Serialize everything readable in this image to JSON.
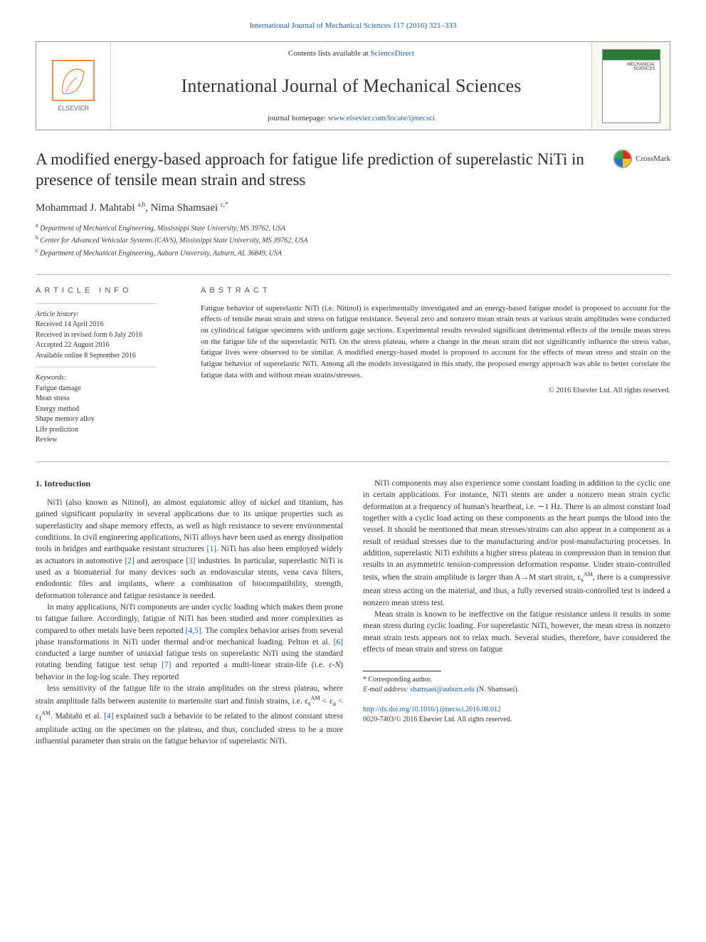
{
  "colors": {
    "link": "#1a5fb4",
    "text": "#333333",
    "rule": "#bbbbbb",
    "elsevier_orange": "#ff6a00",
    "elsevier_text": "#666666",
    "journal_green": "#2a7a3a",
    "crossmark_red": "#d62d20",
    "crossmark_yellow": "#f5c518",
    "crossmark_blue": "#2a6fd6",
    "crossmark_green": "#2aa84a"
  },
  "header": {
    "citation_link": "International Journal of Mechanical Sciences 117 (2016) 321–333",
    "contents_prefix": "Contents lists available at ",
    "contents_link": "ScienceDirect",
    "journal_name": "International Journal of Mechanical Sciences",
    "homepage_prefix": "journal homepage: ",
    "homepage_link": "www.elsevier.com/locate/ijmecsci",
    "publisher_logo_label": "ELSEVIER",
    "crossmark_label": "CrossMark"
  },
  "article": {
    "title": "A modified energy-based approach for fatigue life prediction of superelastic NiTi in presence of tensile mean strain and stress",
    "authors_html": "Mohammad J. Mahtabi <sup>a,b</sup>, Nima Shamsaei <sup>c,*</sup>",
    "affiliations": [
      {
        "sup": "a",
        "text": "Department of Mechanical Engineering, Mississippi State University, MS 39762, USA"
      },
      {
        "sup": "b",
        "text": "Center for Advanced Vehicular Systems (CAVS), Mississippi State University, MS 39762, USA"
      },
      {
        "sup": "c",
        "text": "Department of Mechanical Engineering, Auburn University, Auburn, AL 36849, USA"
      }
    ]
  },
  "info": {
    "heading": "ARTICLE INFO",
    "history_label": "Article history:",
    "history": [
      "Received 14 April 2016",
      "Received in revised form 6 July 2016",
      "Accepted 22 August 2016",
      "Available online 8 September 2016"
    ],
    "keywords_label": "Keywords:",
    "keywords": [
      "Fatigue damage",
      "Mean stress",
      "Energy method",
      "Shape memory alloy",
      "Life prediction",
      "Review"
    ]
  },
  "abstract": {
    "heading": "ABSTRACT",
    "text": "Fatigue behavior of superelastic NiTi (i.e. Nitinol) is experimentally investigated and an energy-based fatigue model is proposed to account for the effects of tensile mean strain and stress on fatigue resistance. Several zero and nonzero mean strain tests at various strain amplitudes were conducted on cylindrical fatigue specimens with uniform gage sections. Experimental results revealed significant detrimental effects of the tensile mean stress on the fatigue life of the superelastic NiTi. On the stress plateau, where a change in the mean strain did not significantly influence the stress value, fatigue lives were observed to be similar. A modified energy-based model is proposed to account for the effects of mean stress and strain on the fatigue behavior of superelastic NiTi. Among all the models investigated in this study, the proposed energy approach was able to better correlate the fatigue data with and without mean strains/stresses.",
    "copyright": "© 2016 Elsevier Ltd. All rights reserved."
  },
  "body": {
    "section_heading": "1. Introduction",
    "paragraphs": [
      "NiTi (also known as Nitinol), an almost equiatomic alloy of nickel and titanium, has gained significant popularity in several applications due to its unique properties such as superelasticity and shape memory effects, as well as high resistance to severe environmental conditions. In civil engineering applications, NiTi alloys have been used as energy dissipation tools in bridges and earthquake resistant structures <a class=\"ref-link\" data-name=\"reference-link\" data-interactable=\"true\">[1]</a>. NiTi has also been employed widely as actuators in automotive <a class=\"ref-link\" data-name=\"reference-link\" data-interactable=\"true\">[2]</a> and aerospace <a class=\"ref-link\" data-name=\"reference-link\" data-interactable=\"true\">[3]</a> industries. In particular, superelastic NiTi is used as a biomaterial for many devices such as endovascular stents, vena cava filters, endodontic files and implants, where a combination of biocompatibility, strength, deformation tolerance and fatigue resistance is needed.",
      "In many applications, NiTi components are under cyclic loading which makes them prone to fatigue failure. Accordingly, fatigue of NiTi has been studied and more complexities as compared to other metals have been reported <a class=\"ref-link\" data-name=\"reference-link\" data-interactable=\"true\">[4,5]</a>. The complex behavior arises from several phase transformations in NiTi under thermal and/or mechanical loading. Pelton et al. <a class=\"ref-link\" data-name=\"reference-link\" data-interactable=\"true\">[6]</a> conducted a large number of uniaxial fatigue tests on superelastic NiTi using the standard rotating bending fatigue test setup <a class=\"ref-link\" data-name=\"reference-link\" data-interactable=\"true\">[7]</a> and reported a multi-linear strain-life (i.e. <i>ε-N</i>) behavior in the log-log scale. They reported",
      "less sensitivity of the fatigue life to the strain amplitudes on the stress plateau, where strain amplitude falls between austenite to martensite start and finish strains, i.e. ε<sub>s</sub><sup>AM</sup> &lt; ε<sub>a</sub> &lt; ε<sub>f</sub><sup>AM</sup>. Mahtabi et al. <a class=\"ref-link\" data-name=\"reference-link\" data-interactable=\"true\">[4]</a> explained such a behavior to be related to the almost constant stress amplitude acting on the specimen on the plateau, and thus, concluded stress to be a more influential parameter than strain on the fatigue behavior of superelastic NiTi.",
      "NiTi components may also experience some constant loading in addition to the cyclic one in certain applications. For instance, NiTi stents are under a nonzero mean strain cyclic deformation at a frequency of human's heartbeat, i.e. ∼1 Hz. There is an almost constant load together with a cyclic load acting on these components as the heart pumps the blood into the vessel. It should be mentioned that mean stresses/strains can also appear in a component as a result of residual stresses due to the manufacturing and/or post-manufacturing processes. In addition, superelastic NiTi exhibits a higher stress plateau in compression than in tension that results in an asymmetric tension-compression deformation response. Under strain-controlled tests, when the strain amplitude is larger than A→M start strain, ε<sub>s</sub><sup>AM</sup>, there is a compressive mean stress acting on the material, and thus, a fully reversed strain-controlled test is indeed a nonzero mean stress test.",
      "Mean strain is known to be ineffective on the fatigue resistance unless it results in some mean stress during cyclic loading. For superelastic NiTi, however, the mean stress in nonzero mean strain tests appears not to relax much. Several studies, therefore, have considered the effects of mean strain and stress on fatigue"
    ]
  },
  "footnotes": {
    "corresponding": "* Corresponding author.",
    "email_label": "E-mail address: ",
    "email": "shamsaei@auburn.edu",
    "email_author": " (N. Shamsaei)."
  },
  "footer": {
    "doi": "http://dx.doi.org/10.1016/j.ijmecsci.2016.08.012",
    "issn_line": "0020-7403/© 2016 Elsevier Ltd. All rights reserved."
  }
}
